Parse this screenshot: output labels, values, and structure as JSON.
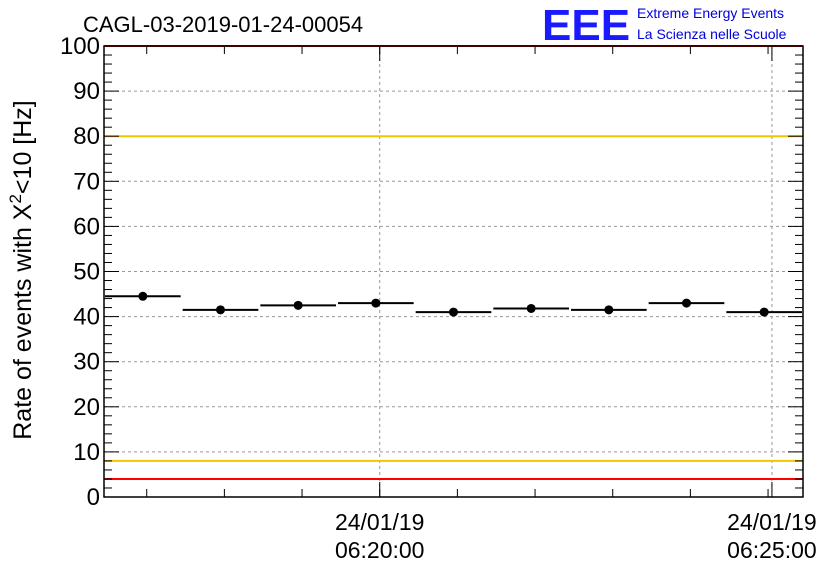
{
  "title": "CAGL-03-2019-01-24-00054",
  "logo": {
    "mark": "EEE",
    "line1": "Extreme Energy Events",
    "line2": "La Scienza nelle Scuole",
    "color": "#1a1aff"
  },
  "chart_data": {
    "type": "scatter",
    "title": "CAGL-03-2019-01-24-00054",
    "ylabel": "Rate of events with X",
    "ylabel_sup": "2",
    "ylabel_tail": "<10 [Hz]",
    "xlabel": "",
    "ylim": [
      0,
      100
    ],
    "y_ticks": [
      0,
      10,
      20,
      30,
      40,
      50,
      60,
      70,
      80,
      90,
      100
    ],
    "x_tick_labels": [
      {
        "date": "24/01/19",
        "time": "06:20:00",
        "index": 3.55
      },
      {
        "date": "24/01/19",
        "time": "06:25:00",
        "index": 8.6
      }
    ],
    "bins": 9,
    "values": [
      44.5,
      41.5,
      42.5,
      43.0,
      41.0,
      41.8,
      41.5,
      43.0,
      41.0
    ],
    "grid": true,
    "reference_lines": [
      {
        "value": 100,
        "color": "#ff0000"
      },
      {
        "value": 80,
        "color": "#f5c400"
      },
      {
        "value": 8,
        "color": "#f5c400"
      },
      {
        "value": 4,
        "color": "#ff0000"
      }
    ]
  }
}
